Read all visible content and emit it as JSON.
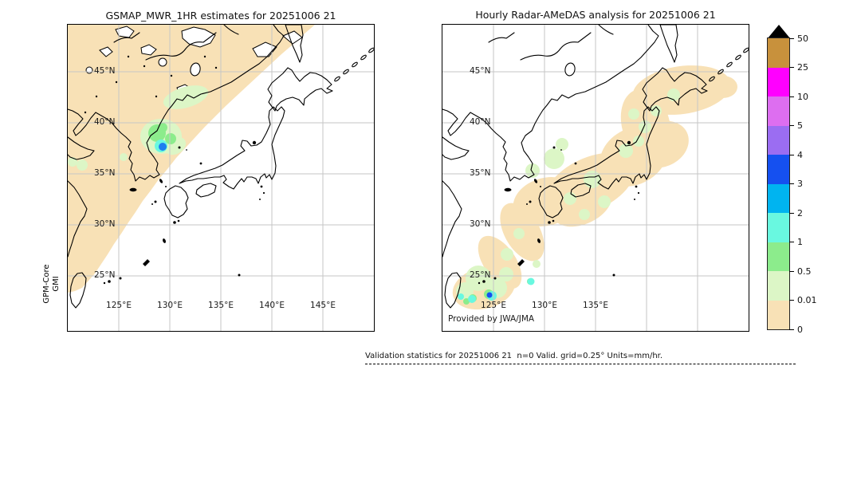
{
  "figure": {
    "left_panel": {
      "title": "GSMAP_MWR_1HR estimates for 20251006 21",
      "instrument_line1": "GPM-Core",
      "instrument_line2": "GMI",
      "lat_labels": [
        "45°N",
        "40°N",
        "35°N",
        "30°N",
        "25°N"
      ],
      "lon_labels": [
        "125°E",
        "130°E",
        "135°E",
        "140°E",
        "145°E"
      ]
    },
    "right_panel": {
      "title": "Hourly Radar-AMeDAS analysis for 20251006 21",
      "credit": "Provided by JWA/JMA",
      "lat_labels": [
        "45°N",
        "40°N",
        "35°N",
        "30°N",
        "25°N"
      ],
      "lon_labels": [
        "125°E",
        "130°E",
        "135°E"
      ]
    },
    "colorbar": {
      "units": "mm/hr",
      "tick_labels": [
        "50",
        "25",
        "10",
        "5",
        "4",
        "3",
        "2",
        "1",
        "0.5",
        "0.01",
        "0"
      ],
      "segment_colors": [
        "#c8913c",
        "#ff00ff",
        "#dd6ef0",
        "#9b6df2",
        "#1550f0",
        "#00b4f0",
        "#69f8e0",
        "#8cec8c",
        "#dcf6c6",
        "#f8e1b6"
      ],
      "overflow_triangle_color": "#000000"
    },
    "footer_note": "Validation statistics for 20251006 21  n=0 Valid. grid=0.25° Units=mm/hr."
  },
  "chart_data": [
    {
      "type": "heatmap",
      "title": "GSMAP_MWR_1HR estimates for 20251006 21",
      "source": "GPM-Core GMI satellite microwave radiometer",
      "units": "mm/hr",
      "x": {
        "label": "longitude",
        "ticks": [
          "125°E",
          "130°E",
          "135°E",
          "140°E",
          "145°E"
        ],
        "range_deg": [
          120,
          150
        ]
      },
      "y": {
        "label": "latitude",
        "ticks": [
          "45°N",
          "40°N",
          "35°N",
          "30°N",
          "25°N"
        ],
        "range_deg": [
          20,
          50
        ]
      },
      "grid": true,
      "colorscale_bounds": [
        0,
        0.01,
        0.5,
        1,
        2,
        3,
        4,
        5,
        10,
        25,
        50
      ],
      "features": [
        {
          "value_mm_hr": "0-0.01",
          "desc": "diagonal NE-SW satellite swath of valid no-rain retrievals covering NE China, Primorye, Korea, Sea of Japan and Taiwan area; rest of domain (Japan, NW Pacific) has no data"
        },
        {
          "value_mm_hr": "0.01-0.5",
          "desc": "light-rain patch along Russian coast near 131-133E, 42-43N"
        },
        {
          "value_mm_hr": "0.5-1",
          "desc": "rain cell off the Korean east coast near 129.5E, 39-40N"
        },
        {
          "value_mm_hr": "2-4",
          "desc": "small intense core (cyan/blue spot) near 129.5E, 38.8N at swath edge"
        }
      ]
    },
    {
      "type": "heatmap",
      "title": "Hourly Radar-AMeDAS analysis for 20251006 21",
      "source": "JWA/JMA Radar-AMeDAS precipitation analysis",
      "units": "mm/hr",
      "x": {
        "label": "longitude",
        "ticks": [
          "125°E",
          "130°E",
          "135°E"
        ],
        "range_deg": [
          120,
          150
        ]
      },
      "y": {
        "label": "latitude",
        "ticks": [
          "45°N",
          "40°N",
          "35°N",
          "30°N",
          "25°N"
        ],
        "range_deg": [
          20,
          50
        ]
      },
      "grid": true,
      "colorscale_bounds": [
        0,
        0.01,
        0.5,
        1,
        2,
        3,
        4,
        5,
        10,
        25,
        50
      ],
      "features": [
        {
          "value_mm_hr": "0-0.01",
          "desc": "radar coverage envelope (no-rain analysis) following the Japanese archipelago from Hokkaido through Honshu, Shikoku, Kyushu and the Ryukyu chain to Okinawa"
        },
        {
          "value_mm_hr": "0.01-0.5",
          "desc": "scattered very light rain patches over Hokkaido, central/western Japan and along the Ryukyu islands"
        },
        {
          "value_mm_hr": "1-3",
          "desc": "cyan rain cells near Okinawa around 124.5-128.5E, 24.5-25.5N"
        },
        {
          "value_mm_hr": "3-4",
          "desc": "small intense blue core near 124.7E, 24.7N"
        }
      ]
    }
  ]
}
